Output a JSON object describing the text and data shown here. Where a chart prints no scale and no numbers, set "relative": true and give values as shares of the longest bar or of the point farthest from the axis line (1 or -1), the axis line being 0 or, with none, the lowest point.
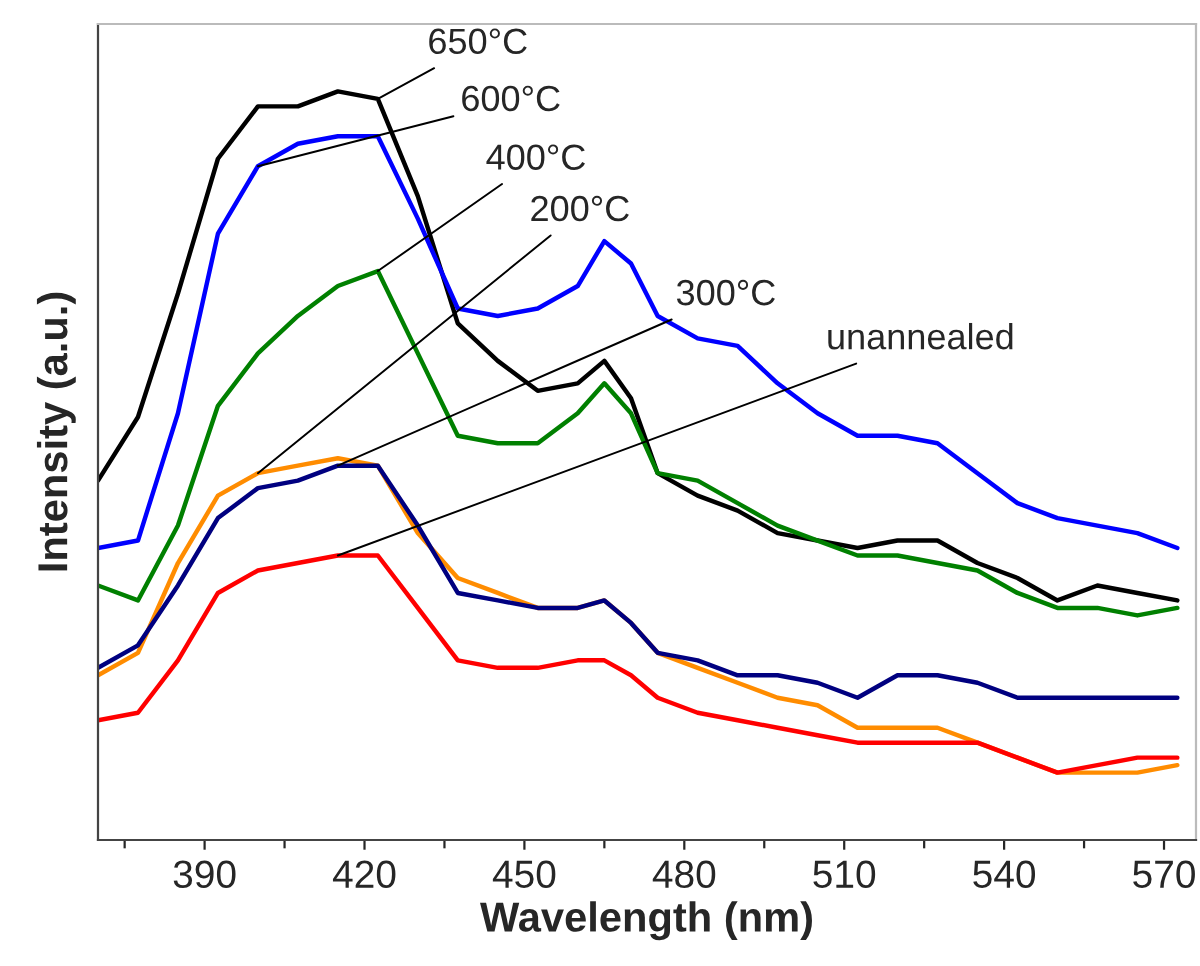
{
  "chart_data": {
    "type": "line",
    "relative": true,
    "xlabel": "Wavelength (nm)",
    "ylabel": "Intensity (a.u.)",
    "x": [
      370,
      377.5,
      385,
      392.5,
      400,
      407.5,
      415,
      422.5,
      430,
      437.5,
      445,
      452.5,
      460,
      465,
      470,
      475,
      482.5,
      490,
      497.5,
      505,
      512.5,
      520,
      527.5,
      535,
      542.5,
      550,
      557.5,
      565,
      572.5
    ],
    "xlim": [
      370,
      576
    ],
    "xticks": [
      {
        "value": 375,
        "label": null
      },
      390,
      {
        "value": 405,
        "label": null
      },
      420,
      {
        "value": 435,
        "label": null
      },
      450,
      {
        "value": 465,
        "label": null
      },
      480,
      {
        "value": 495,
        "label": null
      },
      510,
      {
        "value": 525,
        "label": null
      },
      540,
      {
        "value": 555,
        "label": null
      },
      570
    ],
    "grid": false,
    "legend": false,
    "marker": "none",
    "line_style": "solid",
    "series": [
      {
        "name": "650°C",
        "color": "#000000",
        "values": [
          0.48,
          0.565,
          0.73,
          0.91,
          0.98,
          0.98,
          1.0,
          0.99,
          0.86,
          0.69,
          0.64,
          0.6,
          0.61,
          0.64,
          0.59,
          0.49,
          0.46,
          0.44,
          0.41,
          0.4,
          0.39,
          0.4,
          0.4,
          0.37,
          0.35,
          0.32,
          0.34,
          0.33,
          0.32
        ]
      },
      {
        "name": "600°C",
        "color": "#0000ff",
        "values": [
          0.39,
          0.4,
          0.57,
          0.81,
          0.9,
          0.93,
          0.94,
          0.94,
          0.83,
          0.71,
          0.7,
          0.71,
          0.74,
          0.8,
          0.77,
          0.7,
          0.67,
          0.66,
          0.61,
          0.57,
          0.54,
          0.54,
          0.53,
          0.49,
          0.45,
          0.43,
          0.42,
          0.41,
          0.39
        ]
      },
      {
        "name": "400°C",
        "color": "#008000",
        "values": [
          0.34,
          0.32,
          0.42,
          0.58,
          0.65,
          0.7,
          0.74,
          0.76,
          0.65,
          0.54,
          0.53,
          0.53,
          0.57,
          0.61,
          0.57,
          0.49,
          0.48,
          0.45,
          0.42,
          0.4,
          0.38,
          0.38,
          0.37,
          0.36,
          0.33,
          0.31,
          0.31,
          0.3,
          0.31
        ]
      },
      {
        "name": "200°C",
        "color": "#ff8c00",
        "values": [
          0.22,
          0.25,
          0.37,
          0.46,
          0.49,
          0.5,
          0.51,
          0.5,
          0.41,
          0.35,
          0.33,
          0.31,
          0.31,
          0.32,
          0.29,
          0.25,
          0.23,
          0.21,
          0.19,
          0.18,
          0.15,
          0.15,
          0.15,
          0.13,
          0.11,
          0.09,
          0.09,
          0.09,
          0.1
        ]
      },
      {
        "name": "300°C",
        "color": "#000080",
        "values": [
          0.23,
          0.26,
          0.34,
          0.43,
          0.47,
          0.48,
          0.5,
          0.5,
          0.42,
          0.33,
          0.32,
          0.31,
          0.31,
          0.32,
          0.29,
          0.25,
          0.24,
          0.22,
          0.22,
          0.21,
          0.19,
          0.22,
          0.22,
          0.21,
          0.19,
          0.19,
          0.19,
          0.19,
          0.19
        ]
      },
      {
        "name": "unannealed",
        "color": "#ff0000",
        "values": [
          0.16,
          0.17,
          0.24,
          0.33,
          0.36,
          0.37,
          0.38,
          0.38,
          0.31,
          0.24,
          0.23,
          0.23,
          0.24,
          0.24,
          0.22,
          0.19,
          0.17,
          0.16,
          0.15,
          0.14,
          0.13,
          0.13,
          0.13,
          0.13,
          0.11,
          0.09,
          0.1,
          0.11,
          0.11
        ]
      }
    ]
  }
}
